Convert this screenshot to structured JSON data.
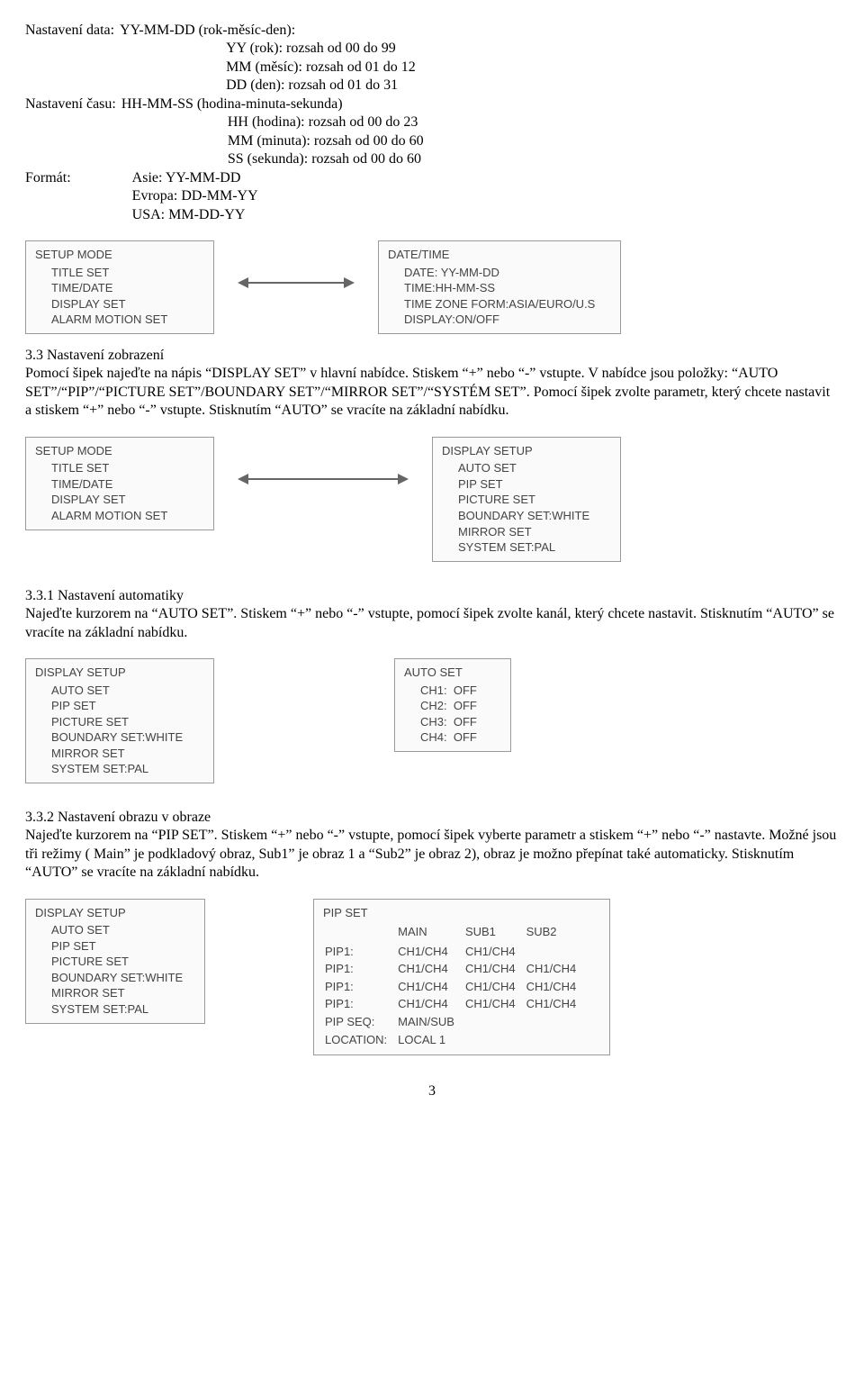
{
  "section_date": {
    "label": "Nastavení data:",
    "title": "YY-MM-DD (rok-měsíc-den):",
    "lines": [
      "YY (rok): rozsah od 00 do 99",
      "MM (měsíc): rozsah od 01 do 12",
      "DD (den): rozsah od 01 do 31"
    ]
  },
  "section_time": {
    "label": "Nastavení času:",
    "title": "HH-MM-SS (hodina-minuta-sekunda)",
    "lines": [
      "HH (hodina): rozsah od 00 do 23",
      "MM (minuta): rozsah od 00 do 60",
      "SS (sekunda): rozsah od 00 do 60"
    ]
  },
  "section_format": {
    "label": "Formát:",
    "lines": [
      "Asie: YY-MM-DD",
      "Evropa: DD-MM-YY",
      "USA: MM-DD-YY"
    ]
  },
  "fig1": {
    "left": {
      "header": "SETUP MODE",
      "rows": [
        "TITLE SET",
        "TIME/DATE",
        "DISPLAY SET",
        "ALARM MOTION SET"
      ]
    },
    "right": {
      "header": "DATE/TIME",
      "rows": [
        "DATE: YY-MM-DD",
        "TIME:HH-MM-SS",
        "TIME ZONE FORM:ASIA/EURO/U.S",
        "DISPLAY:ON/OFF"
      ]
    },
    "box_left_w": 210,
    "box_right_w": 270,
    "arrow_w": 130
  },
  "sec33": {
    "heading": "3.3 Nastavení zobrazení",
    "p1": "Pomocí šipek najeďte na nápis “DISPLAY SET” v hlavní nabídce. Stiskem “+” nebo “-” vstupte. V nabídce jsou položky: “AUTO SET”/“PIP”/“PICTURE SET”/BOUNDARY SET”/“MIRROR SET”/“SYSTÉM SET”. Pomocí šipek zvolte parametr, který chcete nastavit a stiskem “+” nebo “-” vstupte. Stisknutím “AUTO” se vracíte na základní nabídku."
  },
  "fig2": {
    "left": {
      "header": "SETUP MODE",
      "rows": [
        "TITLE SET",
        "TIME/DATE",
        "DISPLAY SET",
        "ALARM MOTION SET"
      ]
    },
    "right": {
      "header": "DISPLAY SETUP",
      "rows": [
        "AUTO SET",
        "PIP SET",
        "PICTURE SET",
        "BOUNDARY SET:WHITE",
        "MIRROR SET",
        "SYSTEM SET:PAL"
      ]
    },
    "box_left_w": 210,
    "box_right_w": 210,
    "arrow_w": 190
  },
  "sec331": {
    "heading": "3.3.1 Nastavení automatiky",
    "p1": " Najeďte kurzorem na “AUTO SET”. Stiskem “+” nebo “-” vstupte, pomocí šipek zvolte kanál, který chcete nastavit. Stisknutím “AUTO” se vracíte na základní nabídku."
  },
  "fig3": {
    "left": {
      "header": "DISPLAY SETUP",
      "rows": [
        "AUTO SET",
        "PIP SET",
        "PICTURE SET",
        "BOUNDARY SET:WHITE",
        "MIRROR SET",
        "SYSTEM SET:PAL"
      ]
    },
    "right": {
      "header": "AUTO SET",
      "rows": [
        "CH1:  OFF",
        "CH2:  OFF",
        "CH3:  OFF",
        "CH4:  OFF"
      ]
    },
    "box_left_w": 210,
    "box_right_w": 130,
    "gap_w": 200
  },
  "sec332": {
    "heading": "3.3.2 Nastavení obrazu v obraze",
    "p1": "Najeďte kurzorem na “PIP SET”. Stiskem “+” nebo “-” vstupte, pomocí šipek vyberte parametr a stiskem “+” nebo “-” nastavte. Možné jsou tři režimy ( Main” je podkladový obraz, Sub1” je obraz 1 a “Sub2” je obraz 2), obraz je možno přepínat také automaticky. Stisknutím “AUTO” se vracíte na základní nabídku."
  },
  "fig4": {
    "left": {
      "header": "DISPLAY SETUP",
      "rows": [
        "AUTO SET",
        "PIP SET",
        "PICTURE SET",
        "BOUNDARY SET:WHITE",
        "MIRROR SET",
        "SYSTEM SET:PAL"
      ]
    },
    "right": {
      "header": "PIP SET",
      "cols": [
        "",
        "MAIN",
        "SUB1",
        "SUB2"
      ],
      "rows": [
        [
          "PIP1:",
          "CH1/CH4",
          "CH1/CH4",
          ""
        ],
        [
          "PIP1:",
          "CH1/CH4",
          "CH1/CH4",
          "CH1/CH4"
        ],
        [
          "PIP1:",
          "CH1/CH4",
          "CH1/CH4",
          "CH1/CH4"
        ],
        [
          "PIP1:",
          "CH1/CH4",
          "CH1/CH4",
          "CH1/CH4"
        ],
        [
          "PIP SEQ:",
          "MAIN/SUB",
          "",
          ""
        ],
        [
          "LOCATION:",
          "LOCAL 1",
          "",
          ""
        ]
      ]
    },
    "box_left_w": 200,
    "box_right_w": 330,
    "gap_w": 120
  },
  "page_number": "3",
  "colors": {
    "box_border": "#9a9a9a",
    "box_bg": "#fafafa",
    "box_text": "#444444",
    "arrow": "#666666"
  }
}
